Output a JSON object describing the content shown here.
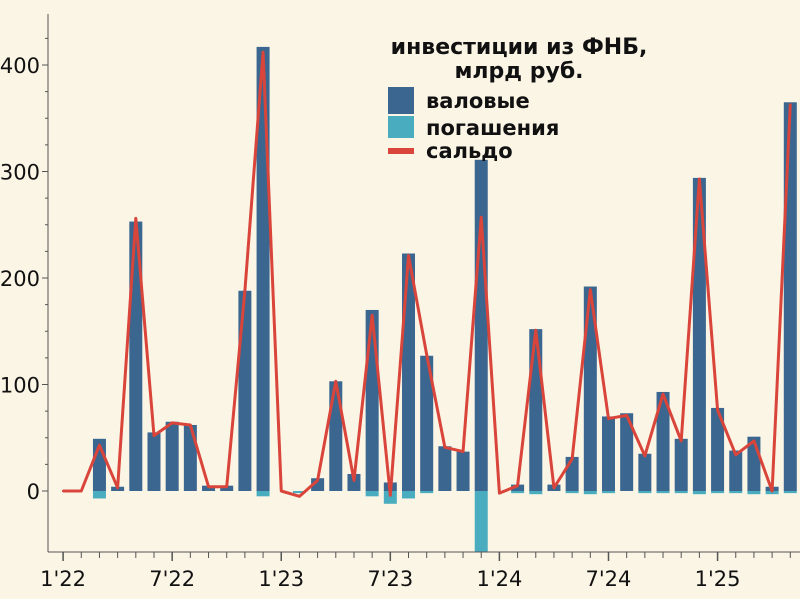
{
  "colors": {
    "background": "#FBF5E6",
    "gross": "#3A6690",
    "repayment": "#4AADBF",
    "net": "#D9453A",
    "axis": "#555555"
  },
  "chart_data": {
    "type": "bar",
    "legend_title_line1": "инвестиции из ФНБ,",
    "legend_title_line2": "млрд руб.",
    "legend_placement": "top-right",
    "grid": false,
    "ylim": [
      -57,
      450
    ],
    "y_ticks": [
      0,
      100,
      200,
      300,
      400
    ],
    "x_tick_labels": [
      {
        "label": "1'22",
        "index": 0
      },
      {
        "label": "7'22",
        "index": 6
      },
      {
        "label": "1'23",
        "index": 12
      },
      {
        "label": "7'23",
        "index": 18
      },
      {
        "label": "1'24",
        "index": 24
      },
      {
        "label": "7'24",
        "index": 30
      },
      {
        "label": "1'25",
        "index": 36
      }
    ],
    "categories": [
      "2022-01",
      "2022-02",
      "2022-03",
      "2022-04",
      "2022-05",
      "2022-06",
      "2022-07",
      "2022-08",
      "2022-09",
      "2022-10",
      "2022-11",
      "2022-12",
      "2023-01",
      "2023-02",
      "2023-03",
      "2023-04",
      "2023-05",
      "2023-06",
      "2023-07",
      "2023-08",
      "2023-09",
      "2023-10",
      "2023-11",
      "2023-12",
      "2024-01",
      "2024-02",
      "2024-03",
      "2024-04",
      "2024-05",
      "2024-06",
      "2024-07",
      "2024-08",
      "2024-09",
      "2024-10",
      "2024-11",
      "2024-12",
      "2025-01",
      "2025-02",
      "2025-03",
      "2025-04",
      "2025-05",
      "2025-06",
      "2025-07",
      "2025-08"
    ],
    "series": [
      {
        "name": "валовые",
        "kind": "bar",
        "values": [
          0,
          0,
          49,
          4,
          253,
          55,
          65,
          62,
          5,
          5,
          188,
          417,
          0,
          0,
          12,
          103,
          16,
          170,
          8,
          223,
          127,
          42,
          37,
          311,
          0,
          6,
          152,
          6,
          32,
          192,
          70,
          73,
          35,
          93,
          49,
          294,
          78,
          38,
          51,
          4,
          365,
          0,
          0,
          0
        ]
      },
      {
        "name": "погашения",
        "kind": "bar",
        "values": [
          0,
          0,
          -7,
          0,
          0,
          0,
          0,
          0,
          0,
          0,
          0,
          -5,
          0,
          -2,
          0,
          0,
          0,
          -5,
          -12,
          -7,
          -2,
          0,
          0,
          -57,
          0,
          -2,
          -3,
          0,
          -2,
          -3,
          -2,
          0,
          -2,
          -2,
          -2,
          -3,
          -2,
          -2,
          -3,
          -3,
          -2,
          0,
          0,
          0
        ]
      },
      {
        "name": "сальдо",
        "kind": "line",
        "values": [
          0,
          0,
          43,
          3,
          256,
          52,
          64,
          62,
          4,
          4,
          188,
          412,
          0,
          -5,
          10,
          103,
          10,
          165,
          -4,
          221,
          128,
          41,
          37,
          257,
          -2,
          5,
          151,
          3,
          30,
          189,
          68,
          71,
          33,
          91,
          47,
          293,
          76,
          34,
          47,
          0,
          363,
          0,
          0,
          0
        ]
      }
    ],
    "n_points_shown": 41
  }
}
